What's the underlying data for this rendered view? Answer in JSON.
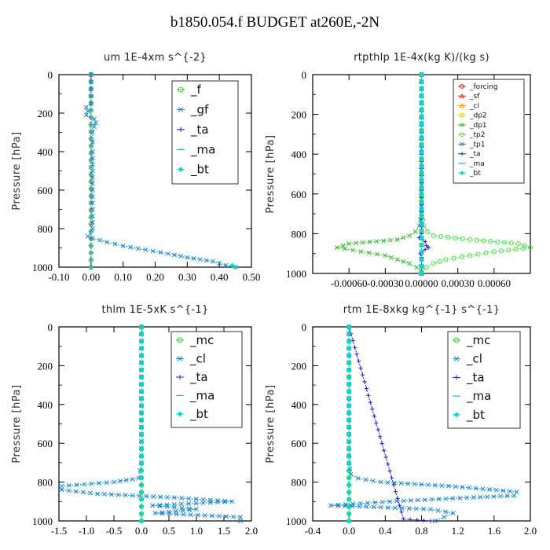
{
  "title": "b1850.054.f  BUDGET at260E,-2N",
  "chart_data": [
    {
      "type": "line",
      "title": "um   1E-4xm s^{-2}",
      "ylabel": "Pressure [hPa]",
      "xlim": [
        -0.1,
        0.5
      ],
      "ylim": [
        1000,
        0
      ],
      "xticks": [
        "-0.10",
        "0.00",
        "0.10",
        "0.20",
        "0.30",
        "0.40",
        "0.50"
      ],
      "xtick_values": [
        -0.1,
        0.0,
        0.1,
        0.2,
        0.3,
        0.4,
        0.5
      ],
      "yticks": [
        0,
        200,
        400,
        600,
        800,
        1000
      ],
      "legend_style": "big",
      "legend_placement": "top-right",
      "series": [
        {
          "name": "_f",
          "color": "#33cc33",
          "marker": "circle-open",
          "p": [
            0,
            1000
          ],
          "x": [
            0,
            0
          ]
        },
        {
          "name": "_gf",
          "color": "#1c86c8",
          "marker": "x",
          "p": [
            0,
            150,
            170,
            190,
            210,
            230,
            250,
            270,
            300,
            350,
            400,
            500,
            600,
            700,
            800,
            840,
            850,
            870,
            890,
            910,
            930,
            950,
            970,
            990,
            1000
          ],
          "x": [
            0.0,
            0.0,
            -0.015,
            -0.01,
            -0.015,
            0.01,
            0.015,
            0.01,
            0.005,
            0.005,
            0.005,
            0.005,
            0.005,
            0.005,
            0.005,
            -0.01,
            0.005,
            0.05,
            0.1,
            0.17,
            0.24,
            0.3,
            0.38,
            0.42,
            0.45
          ]
        },
        {
          "name": "_ta",
          "color": "#2222cc",
          "marker": "plus",
          "p": [
            0,
            1000
          ],
          "x": [
            0,
            0
          ]
        },
        {
          "name": "_ma",
          "color": "#22aacc",
          "marker": "dash",
          "p": [
            0,
            1000
          ],
          "x": [
            0,
            0
          ]
        },
        {
          "name": "_bt",
          "color": "#00d8d8",
          "marker": "diamond",
          "p": [
            990,
            1000
          ],
          "x": [
            0.44,
            0.45
          ]
        }
      ]
    },
    {
      "type": "line",
      "title": "rtpthlp   1E-4x(kg K)/(kg s)",
      "ylabel": "Pressure [hPa]",
      "xlim": [
        -0.0009,
        0.0009
      ],
      "ylim": [
        1000,
        0
      ],
      "xticks": [
        "-0.00060",
        "-0.00030",
        "0.00000",
        "0.00030",
        "0.00060"
      ],
      "xtick_values": [
        -0.0006,
        -0.0003,
        0.0,
        0.0003,
        0.0006
      ],
      "yticks": [
        0,
        200,
        400,
        600,
        800,
        1000
      ],
      "legend_style": "small",
      "legend_placement": "top-right",
      "series": [
        {
          "name": "_forcing",
          "color": "#cc2222",
          "marker": "circle-open",
          "p": [
            0,
            1000
          ],
          "x": [
            0,
            0
          ]
        },
        {
          "name": "_sf",
          "color": "#ee2222",
          "marker": "triangle",
          "p": [
            0,
            1000
          ],
          "x": [
            0,
            0
          ]
        },
        {
          "name": "_cl",
          "color": "#ee9900",
          "marker": "triangle",
          "p": [
            0,
            1000
          ],
          "x": [
            0,
            0
          ]
        },
        {
          "name": "_dp2",
          "color": "#ddcc00",
          "marker": "circle-open",
          "p": [
            0,
            1000
          ],
          "x": [
            0,
            0
          ]
        },
        {
          "name": "_dp1",
          "color": "#33bb33",
          "marker": "x",
          "p": [
            0,
            700,
            760,
            790,
            810,
            830,
            850,
            870,
            890,
            910,
            930,
            950,
            970,
            990,
            1000
          ],
          "x": [
            0.0,
            0.0,
            -2e-05,
            -5e-05,
            -0.0001,
            -0.0002,
            -0.0006,
            -0.0007,
            -0.0005,
            -0.0003,
            -0.0002,
            -0.0001,
            -4e-05,
            0.0,
            0.0
          ]
        },
        {
          "name": "_tp2",
          "color": "#55dd55",
          "marker": "circle-open",
          "p": [
            0,
            700,
            760,
            790,
            810,
            830,
            850,
            870,
            890,
            910,
            930,
            950,
            970,
            990,
            1000
          ],
          "x": [
            0.0,
            0.0,
            2e-05,
            5e-05,
            0.0001,
            0.0004,
            0.0008,
            0.0009,
            0.0006,
            0.0004,
            0.0002,
            0.0001,
            4e-05,
            0.0,
            0.0
          ]
        },
        {
          "name": "_tp1",
          "color": "#1c86c8",
          "marker": "x",
          "p": [
            0,
            1000
          ],
          "x": [
            0,
            0
          ]
        },
        {
          "name": "_ta",
          "color": "#2222cc",
          "marker": "plus",
          "p": [
            0,
            800,
            820,
            840,
            860,
            870,
            880,
            900,
            920,
            1000
          ],
          "x": [
            0,
            0,
            -2e-05,
            3e-05,
            4e-05,
            6e-05,
            3e-05,
            -1e-05,
            0.0,
            0.0
          ]
        },
        {
          "name": "_ma",
          "color": "#22aacc",
          "marker": "dash",
          "p": [
            0,
            1000
          ],
          "x": [
            0,
            0
          ]
        },
        {
          "name": "_bt",
          "color": "#00d8d8",
          "marker": "diamond",
          "p": [
            0,
            1000
          ],
          "x": [
            0,
            0
          ]
        }
      ]
    },
    {
      "type": "line",
      "title": "thlm   1E-5xK s^{-1}",
      "ylabel": "Pressure [hPa]",
      "xlim": [
        -1.5,
        2.0
      ],
      "ylim": [
        1000,
        0
      ],
      "xticks": [
        "-1.5",
        "-1.0",
        "-0.5",
        "0.0",
        "0.5",
        "1.0",
        "1.5",
        "2.0"
      ],
      "xtick_values": [
        -1.5,
        -1.0,
        -0.5,
        0.0,
        0.5,
        1.0,
        1.5,
        2.0
      ],
      "yticks": [
        0,
        200,
        400,
        600,
        800,
        1000
      ],
      "legend_style": "big",
      "legend_placement": "top-right",
      "series": [
        {
          "name": "_mc",
          "color": "#33cc33",
          "marker": "circle-open",
          "p": [
            0,
            1000
          ],
          "x": [
            0,
            0
          ]
        },
        {
          "name": "_cl",
          "color": "#1c86c8",
          "marker": "x",
          "p": [
            0,
            700,
            780,
            800,
            820,
            840,
            860,
            880,
            900,
            920,
            940,
            960,
            980,
            1000
          ],
          "x": [
            0.0,
            0.0,
            -0.05,
            -0.5,
            -1.45,
            -1.45,
            -0.8,
            0.6,
            1.65,
            0.2,
            1.0,
            0.25,
            1.8,
            1.8
          ]
        },
        {
          "name": "_ta",
          "color": "#2222cc",
          "marker": "plus",
          "p": [
            0,
            1000
          ],
          "x": [
            0,
            0
          ]
        },
        {
          "name": "_ma",
          "color": "#22aacc",
          "marker": "dash",
          "p": [
            0,
            1000
          ],
          "x": [
            0,
            0
          ]
        },
        {
          "name": "_bt",
          "color": "#00d8d8",
          "marker": "diamond",
          "p": [
            0,
            1000
          ],
          "x": [
            0,
            0
          ]
        }
      ]
    },
    {
      "type": "line",
      "title": "rtm   1E-8xkg kg^{-1} s^{-1}",
      "ylabel": "Pressure [hPa]",
      "xlim": [
        -0.4,
        2.0
      ],
      "ylim": [
        1000,
        0
      ],
      "xticks": [
        "-0.4",
        "0.0",
        "0.4",
        "0.8",
        "1.2",
        "1.6",
        "2.0"
      ],
      "xtick_values": [
        -0.4,
        0.0,
        0.4,
        0.8,
        1.2,
        1.6,
        2.0
      ],
      "yticks": [
        0,
        200,
        400,
        600,
        800,
        1000
      ],
      "legend_style": "big",
      "legend_placement": "top-right",
      "series": [
        {
          "name": "_mc",
          "color": "#33cc33",
          "marker": "circle-open",
          "p": [
            0,
            1000
          ],
          "x": [
            0,
            0
          ]
        },
        {
          "name": "_cl",
          "color": "#1c86c8",
          "marker": "x",
          "p": [
            0,
            700,
            760,
            780,
            800,
            820,
            850,
            870,
            880,
            900,
            920,
            940,
            960,
            980,
            1000
          ],
          "x": [
            0.0,
            0.0,
            0.02,
            0.1,
            0.35,
            1.1,
            1.85,
            1.82,
            1.3,
            0.45,
            -0.2,
            0.9,
            1.15,
            1.05,
            0.95
          ]
        },
        {
          "name": "_ta",
          "color": "#2222cc",
          "marker": "plus",
          "p": [
            0,
            990,
            1000
          ],
          "x": [
            0,
            0.6,
            0.9
          ]
        },
        {
          "name": "_ma",
          "color": "#22aacc",
          "marker": "dash",
          "p": [
            0,
            1000
          ],
          "x": [
            0,
            0
          ]
        },
        {
          "name": "_bt",
          "color": "#00d8d8",
          "marker": "diamond",
          "p": [
            0,
            1000
          ],
          "x": [
            0,
            0
          ]
        }
      ]
    }
  ]
}
